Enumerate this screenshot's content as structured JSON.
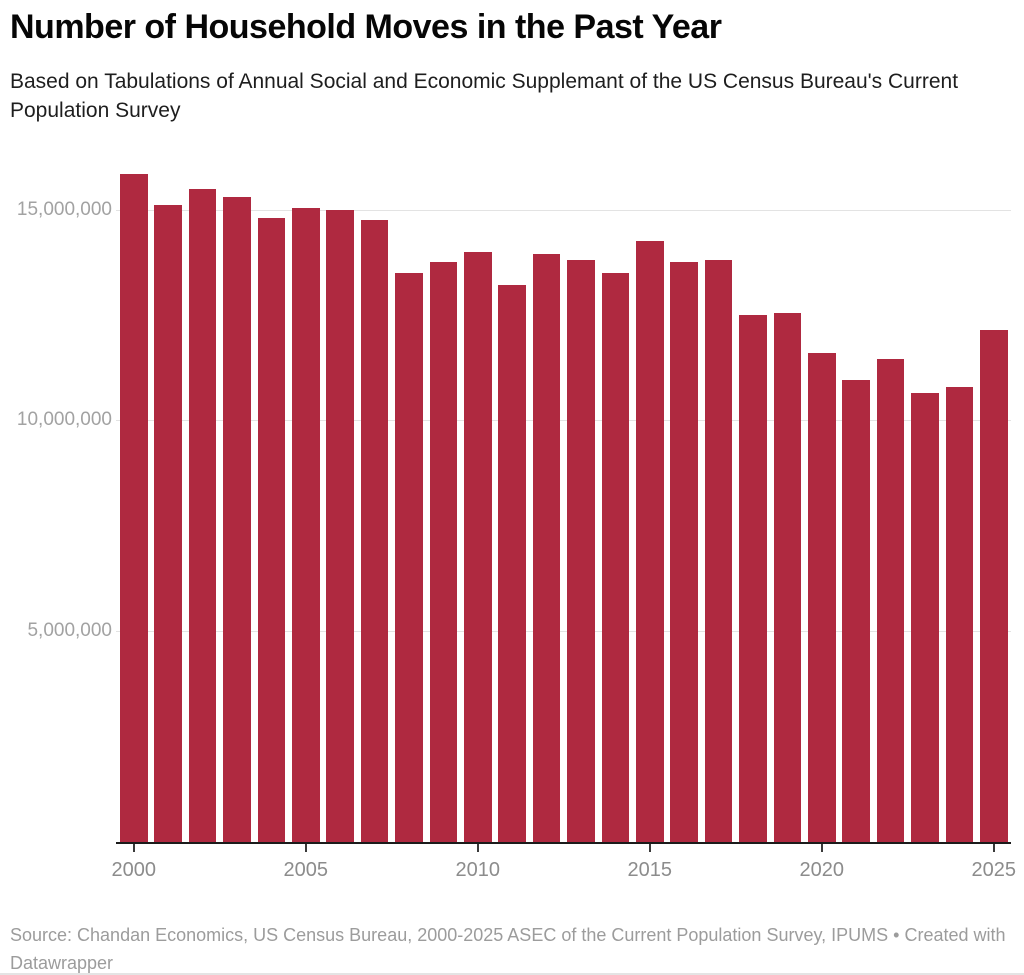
{
  "header": {
    "title": "Number of Household Moves in the Past Year",
    "subtitle": "Based on Tabulations of Annual Social and Economic Supplemant of the US Census Bureau's Current Population Survey"
  },
  "chart_data": {
    "type": "bar",
    "title": "Number of Household Moves in the Past Year",
    "categories": [
      2000,
      2001,
      2002,
      2003,
      2004,
      2005,
      2006,
      2007,
      2008,
      2009,
      2010,
      2011,
      2012,
      2013,
      2014,
      2015,
      2016,
      2017,
      2018,
      2019,
      2020,
      2021,
      2022,
      2023,
      2024,
      2025
    ],
    "values": [
      15900000,
      15150000,
      15550000,
      15350000,
      14850000,
      15100000,
      15050000,
      14800000,
      13550000,
      13800000,
      14050000,
      13250000,
      14000000,
      13850000,
      13550000,
      14300000,
      13800000,
      13850000,
      12550000,
      12600000,
      11650000,
      11000000,
      11500000,
      10700000,
      10850000,
      12200000
    ],
    "xlabel": "",
    "ylabel": "",
    "ylim": [
      0,
      16225000
    ],
    "grid": "horizontal-only",
    "legend": "none",
    "bar_color": "#af2940",
    "yticks": [
      {
        "value": 5000000,
        "label": "5,000,000"
      },
      {
        "value": 10000000,
        "label": "10,000,000"
      },
      {
        "value": 15000000,
        "label": "15,000,000"
      }
    ],
    "xticks": [
      2000,
      2005,
      2010,
      2015,
      2020,
      2025
    ]
  },
  "footer": {
    "source": "Source: Chandan Economics, US Census Bureau, 2000-2025 ASEC of the Current Population Survey, IPUMS • Created with Datawrapper"
  }
}
